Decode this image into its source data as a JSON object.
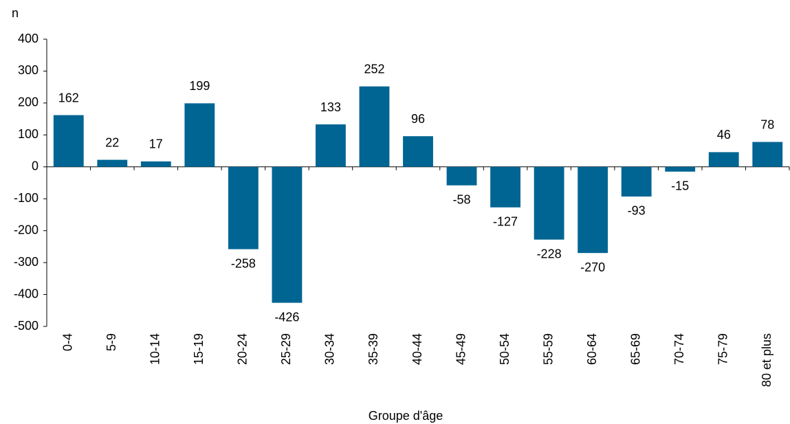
{
  "chart_data": {
    "type": "bar",
    "y_label": "n",
    "x_label": "Groupe d'âge",
    "categories": [
      "0-4",
      "5-9",
      "10-14",
      "15-19",
      "20-24",
      "25-29",
      "30-34",
      "35-39",
      "40-44",
      "45-49",
      "50-54",
      "55-59",
      "60-64",
      "65-69",
      "70-74",
      "75-79",
      "80 et plus"
    ],
    "values": [
      162,
      22,
      17,
      199,
      -258,
      -426,
      133,
      252,
      96,
      -58,
      -127,
      -228,
      -270,
      -93,
      -15,
      46,
      78
    ],
    "color": "#006593",
    "ylim": [
      -500,
      400
    ],
    "yticks": [
      -500,
      -400,
      -300,
      -200,
      -100,
      0,
      100,
      200,
      300,
      400
    ],
    "grid": false
  }
}
